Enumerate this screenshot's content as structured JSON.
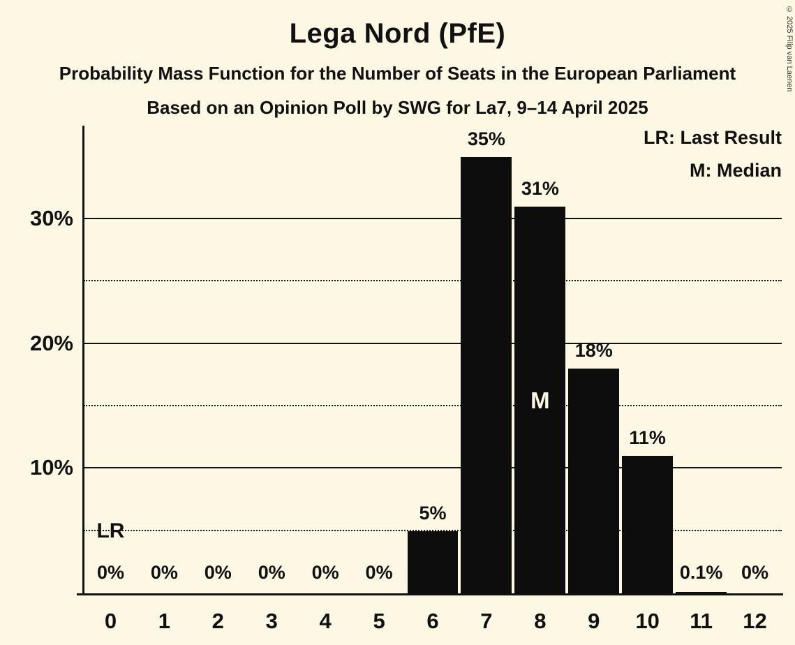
{
  "title": "Lega Nord (PfE)",
  "subtitle1": "Probability Mass Function for the Number of Seats in the European Parliament",
  "subtitle2": "Based on an Opinion Poll by SWG for La7, 9–14 April 2025",
  "copyright": "© 2025 Filip van Laenen",
  "legend": {
    "lr": "LR: Last Result",
    "m": "M: Median"
  },
  "colors": {
    "background": "#fcf8e3",
    "bar": "#0d0d0d",
    "text": "#111111"
  },
  "chart_data": {
    "type": "bar",
    "title": "Lega Nord (PfE)",
    "xlabel": "",
    "ylabel": "",
    "categories": [
      0,
      1,
      2,
      3,
      4,
      5,
      6,
      7,
      8,
      9,
      10,
      11,
      12
    ],
    "values": [
      0,
      0,
      0,
      0,
      0,
      0,
      5,
      35,
      31,
      18,
      11,
      0.1,
      0
    ],
    "bar_labels": [
      "0%",
      "0%",
      "0%",
      "0%",
      "0%",
      "0%",
      "5%",
      "35%",
      "31%",
      "18%",
      "11%",
      "0.1%",
      "0%"
    ],
    "ylim": [
      0,
      37.5
    ],
    "yticks": [
      {
        "value": 10,
        "label": "10%"
      },
      {
        "value": 20,
        "label": "20%"
      },
      {
        "value": 30,
        "label": "30%"
      }
    ],
    "grid_solid": [
      10,
      20,
      30
    ],
    "grid_dotted": [
      5,
      15,
      25
    ],
    "legend_position": "top-right",
    "median_seat": 8,
    "median_label": "M",
    "last_result_seat": 0,
    "last_result_label": "LR"
  }
}
